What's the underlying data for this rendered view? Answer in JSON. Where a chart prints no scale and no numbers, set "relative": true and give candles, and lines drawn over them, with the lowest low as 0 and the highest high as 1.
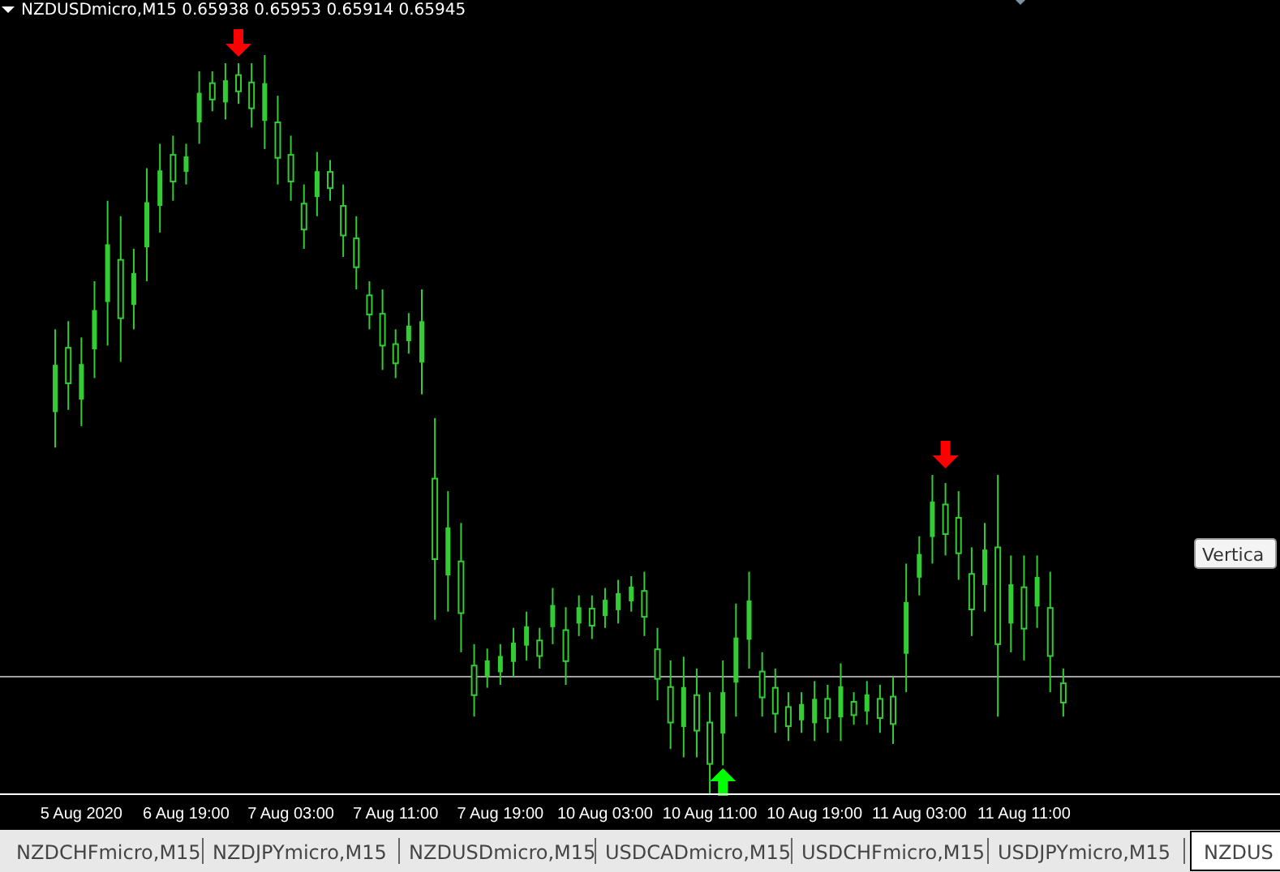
{
  "chart_data": {
    "type": "candlestick",
    "title": "NZDUSDmicro,M15  0.65938 0.65953 0.65914 0.65945",
    "relative": true,
    "color": "#32cd32",
    "categories": [
      null,
      null,
      "5 Aug 2020",
      null,
      null,
      null,
      null,
      null,
      null,
      null,
      "6 Aug 19:00",
      null,
      null,
      null,
      null,
      null,
      null,
      null,
      "7 Aug 03:00",
      null,
      null,
      null,
      null,
      null,
      null,
      null,
      "7 Aug 11:00",
      null,
      null,
      null,
      null,
      null,
      null,
      null,
      "7 Aug 19:00",
      null,
      null,
      null,
      null,
      null,
      null,
      null,
      "10 Aug 03:00",
      null,
      null,
      null,
      null,
      null,
      null,
      null,
      "10 Aug 11:00",
      null,
      null,
      null,
      null,
      null,
      null,
      null,
      "10 Aug 19:00",
      null,
      null,
      null,
      null,
      null,
      null,
      null,
      "11 Aug 03:00",
      null,
      null,
      null,
      null,
      null,
      null,
      null,
      "11 Aug 11:00",
      null,
      null,
      null
    ],
    "ohlc": [
      [
        0.517,
        0.629,
        0.469,
        0.581
      ],
      [
        0.604,
        0.64,
        0.52,
        0.556
      ],
      [
        0.534,
        0.618,
        0.498,
        0.582
      ],
      [
        0.602,
        0.694,
        0.563,
        0.655
      ],
      [
        0.666,
        0.803,
        0.607,
        0.744
      ],
      [
        0.723,
        0.782,
        0.585,
        0.644
      ],
      [
        0.662,
        0.738,
        0.629,
        0.705
      ],
      [
        0.74,
        0.847,
        0.694,
        0.801
      ],
      [
        0.796,
        0.88,
        0.76,
        0.844
      ],
      [
        0.865,
        0.891,
        0.803,
        0.829
      ],
      [
        0.842,
        0.88,
        0.825,
        0.863
      ],
      [
        0.909,
        0.978,
        0.88,
        0.949
      ],
      [
        0.962,
        0.978,
        0.924,
        0.94
      ],
      [
        0.936,
        0.989,
        0.913,
        0.966
      ],
      [
        0.973,
        0.989,
        0.934,
        0.951
      ],
      [
        0.963,
        0.989,
        0.902,
        0.928
      ],
      [
        0.911,
        1,
        0.873,
        0.962
      ],
      [
        0.909,
        0.945,
        0.825,
        0.861
      ],
      [
        0.865,
        0.891,
        0.803,
        0.829
      ],
      [
        0.799,
        0.825,
        0.738,
        0.764
      ],
      [
        0.808,
        0.869,
        0.782,
        0.843
      ],
      [
        0.842,
        0.858,
        0.803,
        0.82
      ],
      [
        0.796,
        0.825,
        0.727,
        0.756
      ],
      [
        0.752,
        0.782,
        0.683,
        0.713
      ],
      [
        0.675,
        0.694,
        0.629,
        0.649
      ],
      [
        0.65,
        0.683,
        0.574,
        0.607
      ],
      [
        0.609,
        0.629,
        0.563,
        0.583
      ],
      [
        0.613,
        0.651,
        0.596,
        0.634
      ],
      [
        0.584,
        0.683,
        0.541,
        0.64
      ],
      [
        0.427,
        0.509,
        0.236,
        0.318
      ],
      [
        0.296,
        0.41,
        0.247,
        0.361
      ],
      [
        0.315,
        0.367,
        0.192,
        0.245
      ],
      [
        0.174,
        0.203,
        0.105,
        0.134
      ],
      [
        0.16,
        0.197,
        0.144,
        0.181
      ],
      [
        0.165,
        0.203,
        0.148,
        0.187
      ],
      [
        0.179,
        0.225,
        0.159,
        0.205
      ],
      [
        0.201,
        0.247,
        0.181,
        0.227
      ],
      [
        0.208,
        0.225,
        0.17,
        0.187
      ],
      [
        0.226,
        0.279,
        0.203,
        0.256
      ],
      [
        0.222,
        0.253,
        0.148,
        0.18
      ],
      [
        0.231,
        0.269,
        0.214,
        0.253
      ],
      [
        0.251,
        0.269,
        0.21,
        0.228
      ],
      [
        0.241,
        0.279,
        0.225,
        0.263
      ],
      [
        0.249,
        0.29,
        0.231,
        0.272
      ],
      [
        0.261,
        0.295,
        0.247,
        0.281
      ],
      [
        0.275,
        0.301,
        0.214,
        0.24
      ],
      [
        0.196,
        0.225,
        0.127,
        0.156
      ],
      [
        0.145,
        0.181,
        0.061,
        0.097
      ],
      [
        0.091,
        0.186,
        0.05,
        0.145
      ],
      [
        0.134,
        0.17,
        0.05,
        0.086
      ],
      [
        0.097,
        0.138,
        0,
        0.041
      ],
      [
        0.082,
        0.181,
        0.039,
        0.138
      ],
      [
        0.151,
        0.258,
        0.105,
        0.212
      ],
      [
        0.209,
        0.301,
        0.17,
        0.262
      ],
      [
        0.166,
        0.192,
        0.105,
        0.131
      ],
      [
        0.144,
        0.17,
        0.083,
        0.109
      ],
      [
        0.118,
        0.138,
        0.072,
        0.092
      ],
      [
        0.1,
        0.138,
        0.083,
        0.122
      ],
      [
        0.096,
        0.153,
        0.072,
        0.129
      ],
      [
        0.129,
        0.148,
        0.083,
        0.103
      ],
      [
        0.104,
        0.177,
        0.072,
        0.146
      ],
      [
        0.125,
        0.138,
        0.094,
        0.107
      ],
      [
        0.112,
        0.153,
        0.094,
        0.135
      ],
      [
        0.129,
        0.148,
        0.083,
        0.103
      ],
      [
        0.132,
        0.159,
        0.068,
        0.095
      ],
      [
        0.19,
        0.312,
        0.138,
        0.26
      ],
      [
        0.293,
        0.349,
        0.269,
        0.325
      ],
      [
        0.348,
        0.432,
        0.312,
        0.396
      ],
      [
        0.392,
        0.421,
        0.323,
        0.352
      ],
      [
        0.374,
        0.41,
        0.29,
        0.326
      ],
      [
        0.298,
        0.334,
        0.214,
        0.25
      ],
      [
        0.283,
        0.367,
        0.247,
        0.331
      ],
      [
        0.334,
        0.432,
        0.105,
        0.203
      ],
      [
        0.231,
        0.323,
        0.192,
        0.284
      ],
      [
        0.28,
        0.323,
        0.181,
        0.224
      ],
      [
        0.254,
        0.323,
        0.225,
        0.294
      ],
      [
        0.252,
        0.301,
        0.138,
        0.187
      ],
      [
        0.15,
        0.17,
        0.105,
        0.124
      ]
    ],
    "ref_lines": [
      {
        "axis": "y",
        "value": 0.159,
        "color": "#a0a0a0"
      }
    ],
    "annotations": [
      "Vertica",
      "NZDCHFmicro,M15",
      "NZDJPYmicro,M15",
      "NZDUSDmicro,M15",
      "USDCADmicro,M15",
      "USDCHFmicro,M15",
      "USDJPYmicro,M15",
      "NZDUS"
    ]
  }
}
